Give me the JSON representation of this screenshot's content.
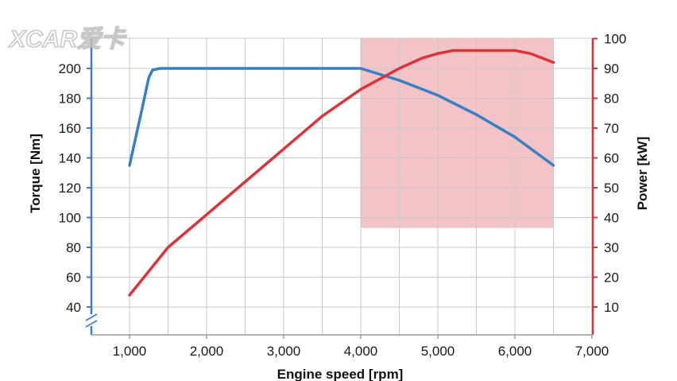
{
  "watermark": {
    "text": "XCAR爱卡"
  },
  "chart_data": {
    "type": "line",
    "xlabel": "Engine speed [rpm]",
    "ylabel_left": "Torque [Nm]",
    "ylabel_right": "Power [kW]",
    "xlim": [
      500,
      7000
    ],
    "ylim_left": [
      28,
      214
    ],
    "ylim_right": [
      5,
      100
    ],
    "x_ticks": [
      1000,
      2000,
      3000,
      4000,
      5000,
      6000,
      7000
    ],
    "x_tick_labels": [
      "1,000",
      "2,000",
      "3,000",
      "4,000",
      "5,000",
      "6,000",
      "7,000"
    ],
    "y_left_ticks": [
      40,
      60,
      80,
      100,
      120,
      140,
      160,
      180,
      200
    ],
    "y_left_tick_labels": [
      "40",
      "60",
      "80",
      "100",
      "120",
      "140",
      "160",
      "180",
      "200"
    ],
    "y_right_ticks": [
      10,
      20,
      30,
      40,
      50,
      60,
      70,
      80,
      90,
      100
    ],
    "y_right_tick_labels": [
      "10",
      "20",
      "30",
      "40",
      "50",
      "60",
      "70",
      "80",
      "90",
      "100"
    ],
    "grid": true,
    "axis_break_left": true,
    "highlight_region": {
      "x": [
        4000,
        6500
      ],
      "y_left": [
        93,
        214
      ],
      "color": "#f2b8bd"
    },
    "series": [
      {
        "axis": "left",
        "color": "#3a7fc1",
        "x": [
          1000,
          1150,
          1250,
          1300,
          1400,
          1500,
          2000,
          3000,
          4000,
          4500,
          5000,
          5500,
          6000,
          6500
        ],
        "y": [
          135,
          170,
          194,
          199,
          200,
          200,
          200,
          200,
          200,
          192,
          182,
          169,
          154,
          135
        ]
      },
      {
        "axis": "right",
        "color": "#d9343a",
        "x": [
          1000,
          1250,
          1500,
          2000,
          2500,
          3000,
          3500,
          4000,
          4500,
          4800,
          5000,
          5200,
          5500,
          6000,
          6200,
          6500
        ],
        "y": [
          14,
          22,
          30,
          41,
          52,
          63,
          74,
          83,
          90,
          93.5,
          95,
          96,
          96,
          96,
          95,
          92
        ]
      }
    ]
  }
}
